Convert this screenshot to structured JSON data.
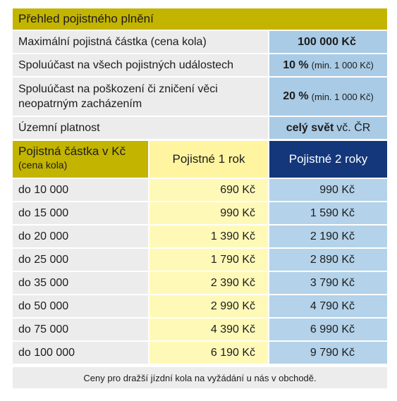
{
  "title": "Přehled pojistného plnění",
  "summary": [
    {
      "label": "Maximální pojistná částka (cena kola)",
      "value_bold": "100 000 Kč",
      "value_extra": ""
    },
    {
      "label": "Spoluúčast na všech pojistných událostech",
      "value_bold": "10 %",
      "value_extra": "(min. 1 000 Kč)"
    },
    {
      "label": "Spoluúčast na poškození či zničení věci neopatrným zacházením",
      "value_bold": "20 %",
      "value_extra": "(min. 1 000 Kč)"
    },
    {
      "label": "Územní platnost",
      "value_bold": "celý svět",
      "value_extra": "vč. ČR"
    }
  ],
  "table": {
    "header": {
      "col1_title": "Pojistná částka v Kč",
      "col1_sub": "(cena kola)",
      "col2": "Pojistné 1 rok",
      "col3": "Pojistné 2 roky"
    },
    "rows": [
      {
        "amount": "do 10 000",
        "one_year": "690 Kč",
        "two_years": "990 Kč"
      },
      {
        "amount": "do 15 000",
        "one_year": "990 Kč",
        "two_years": "1 590 Kč"
      },
      {
        "amount": "do 20 000",
        "one_year": "1 390 Kč",
        "two_years": "2 190 Kč"
      },
      {
        "amount": "do 25 000",
        "one_year": "1 790 Kč",
        "two_years": "2 890 Kč"
      },
      {
        "amount": "do 35 000",
        "one_year": "2 390 Kč",
        "two_years": "3 790 Kč"
      },
      {
        "amount": "do 50 000",
        "one_year": "2 990 Kč",
        "two_years": "4 790 Kč"
      },
      {
        "amount": "do 75 000",
        "one_year": "4 390 Kč",
        "two_years": "6 990 Kč"
      },
      {
        "amount": "do 100 000",
        "one_year": "6 190 Kč",
        "two_years": "9 790 Kč"
      }
    ]
  },
  "footnote": "Ceny pro dražší jízdní kola na vyžádání u nás v obchodě.",
  "colors": {
    "olive_header": "#c3b400",
    "pale_yellow": "#fff9b8",
    "light_blue": "#b4d2e9",
    "navy": "#13377a",
    "grey_cell": "#ececec"
  }
}
